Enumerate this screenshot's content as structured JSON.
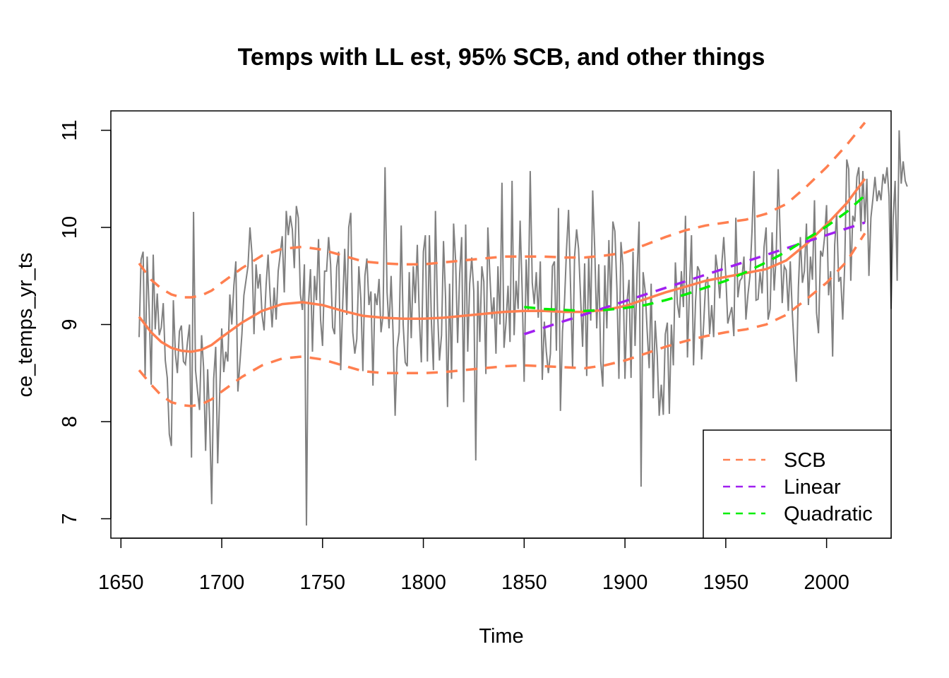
{
  "chart_data": {
    "type": "line",
    "title": "Temps with LL est, 95% SCB, and other things",
    "xlabel": "Time",
    "ylabel": "ce_temps_yr_ts",
    "xlim": [
      1645,
      2032
    ],
    "ylim": [
      6.8,
      11.2
    ],
    "x_ticks": [
      1650,
      1700,
      1750,
      1800,
      1850,
      1900,
      1950,
      2000
    ],
    "y_ticks": [
      7,
      8,
      9,
      10,
      11
    ],
    "grid": false,
    "legend_position": "bottom-right",
    "colors": {
      "raw": "#808080",
      "scb": "#FF7F50",
      "linear": "#A020F0",
      "quadratic": "#00EE00"
    },
    "legend": [
      {
        "label": "SCB",
        "color": "#FF7F50"
      },
      {
        "label": "Linear",
        "color": "#A020F0"
      },
      {
        "label": "Quadratic",
        "color": "#00EE00"
      }
    ],
    "raw_series": {
      "x_start": 1659,
      "x_step": 1,
      "values": [
        8.87,
        9.67,
        9.75,
        8.47,
        9.7,
        9.14,
        8.38,
        9.72,
        8.95,
        9.32,
        8.89,
        8.97,
        9.22,
        8.63,
        8.45,
        7.87,
        7.75,
        9.25,
        8.7,
        8.5,
        8.93,
        8.99,
        8.62,
        8.59,
        8.82,
        9.0,
        7.63,
        10.16,
        8.53,
        8.31,
        8.12,
        8.89,
        8.56,
        7.7,
        8.54,
        8.01,
        7.15,
        8.44,
        8.77,
        7.57,
        8.3,
        8.96,
        8.51,
        8.72,
        8.62,
        9.31,
        9.0,
        9.4,
        9.65,
        8.31,
        8.6,
        8.9,
        9.3,
        9.45,
        9.6,
        10.0,
        9.72,
        8.9,
        9.62,
        9.37,
        9.52,
        9.1,
        8.94,
        9.41,
        9.72,
        9.29,
        8.97,
        9.38,
        9.05,
        9.55,
        9.72,
        9.91,
        9.33,
        10.17,
        9.92,
        10.12,
        9.98,
        9.58,
        10.22,
        10.1,
        9.31,
        9.15,
        9.62,
        6.93,
        9.2,
        9.57,
        8.72,
        9.5,
        9.25,
        9.88,
        9.05,
        8.78,
        9.55,
        9.55,
        9.9,
        9.62,
        8.97,
        8.9,
        9.59,
        9.75,
        8.53,
        9.22,
        9.78,
        9.1,
        10.0,
        10.15,
        8.92,
        8.7,
        8.85,
        9.6,
        9.25,
        8.52,
        9.5,
        9.68,
        9.2,
        9.34,
        8.37,
        9.32,
        9.2,
        9.47,
        8.92,
        9.1,
        10.62,
        9.33,
        8.96,
        9.5,
        8.9,
        8.06,
        8.76,
        8.92,
        10.02,
        9.0,
        8.61,
        8.57,
        9.54,
        8.86,
        9.6,
        9.22,
        9.82,
        9.06,
        8.61,
        9.75,
        9.92,
        8.62,
        9.92,
        9.02,
        8.53,
        10.17,
        9.15,
        8.63,
        8.89,
        9.86,
        9.28,
        8.15,
        9.42,
        8.44,
        10.04,
        9.65,
        8.81,
        9.52,
        9.9,
        8.2,
        10.03,
        8.72,
        9.42,
        9.69,
        9.34,
        7.6,
        9.45,
        8.82,
        9.6,
        9.44,
        8.49,
        10.0,
        9.5,
        9.06,
        9.28,
        8.7,
        9.6,
        9.0,
        10.46,
        8.76,
        9.02,
        9.4,
        8.82,
        10.48,
        8.89,
        9.45,
        9.16,
        10.07,
        9.35,
        8.41,
        9.67,
        9.14,
        10.58,
        9.43,
        9.21,
        9.54,
        9.07,
        9.65,
        8.43,
        9.03,
        8.72,
        8.5,
        8.7,
        9.6,
        9.65,
        8.73,
        10.2,
        8.11,
        8.93,
        9.22,
        9.77,
        10.18,
        9.4,
        8.55,
        9.7,
        9.98,
        9.78,
        9.27,
        8.77,
        9.63,
        8.47,
        9.7,
        9.04,
        10.38,
        9.77,
        8.96,
        9.62,
        8.62,
        8.36,
        9.61,
        8.96,
        9.87,
        9.17,
        10.06,
        9.96,
        9.37,
        8.44,
        9.85,
        9.61,
        8.44,
        9.23,
        9.46,
        8.45,
        9.75,
        8.78,
        9.52,
        10.06,
        7.33,
        9.54,
        9.35,
        8.94,
        8.55,
        9.42,
        8.24,
        9.04,
        8.68,
        8.06,
        8.38,
        8.07,
        8.9,
        9.02,
        8.08,
        9.0,
        8.58,
        9.64,
        9.22,
        9.07,
        9.55,
        9.18,
        10.12,
        8.66,
        9.38,
        9.92,
        8.58,
        9.23,
        9.6,
        9.55,
        8.64,
        9.0,
        9.42,
        9.49,
        8.9,
        9.2,
        8.87,
        9.72,
        9.55,
        9.27,
        9.62,
        9.9,
        9.5,
        9.01,
        9.1,
        9.18,
        8.88,
        10.1,
        9.28,
        9.45,
        9.48,
        9.7,
        9.05,
        9.31,
        9.5,
        9.96,
        10.58,
        9.25,
        9.26,
        9.54,
        9.32,
        9.8,
        10.0,
        9.05,
        9.16,
        9.95,
        9.35,
        9.7,
        10.6,
        9.9,
        9.22,
        9.6,
        9.56,
        9.14,
        9.65,
        9.12,
        8.74,
        8.41,
        9.38,
        9.9,
        9.43,
        9.55,
        10.04,
        9.2,
        9.7,
        9.46,
        10.28,
        9.12,
        8.91,
        9.76,
        9.7,
        9.9,
        10.23,
        9.3,
        9.55,
        8.67,
        9.82,
        10.15,
        9.44,
        9.49,
        9.05,
        9.62,
        10.7,
        10.6,
        9.45,
        10.12,
        10.06,
        10.52,
        10.62,
        9.96,
        10.58,
        10.05,
        10.5,
        9.5,
        10.1,
        10.3,
        10.52,
        10.27,
        10.38,
        10.28,
        10.55,
        10.45,
        10.62,
        10.32,
        9.16,
        10.1,
        10.48,
        9.45,
        11.0,
        10.45,
        10.68,
        10.48,
        10.42
      ]
    },
    "ll_estimate": {
      "x": [
        1659,
        1665,
        1670,
        1675,
        1680,
        1685,
        1690,
        1695,
        1700,
        1710,
        1720,
        1730,
        1740,
        1750,
        1760,
        1770,
        1780,
        1790,
        1800,
        1810,
        1820,
        1830,
        1840,
        1850,
        1860,
        1870,
        1880,
        1890,
        1900,
        1910,
        1920,
        1930,
        1940,
        1950,
        1960,
        1970,
        1980,
        1990,
        2000,
        2010,
        2019
      ],
      "y": [
        9.08,
        8.92,
        8.82,
        8.76,
        8.73,
        8.72,
        8.74,
        8.79,
        8.87,
        9.02,
        9.14,
        9.21,
        9.23,
        9.2,
        9.14,
        9.09,
        9.07,
        9.06,
        9.06,
        9.07,
        9.09,
        9.11,
        9.13,
        9.14,
        9.14,
        9.13,
        9.13,
        9.15,
        9.19,
        9.26,
        9.33,
        9.39,
        9.45,
        9.49,
        9.53,
        9.57,
        9.66,
        9.83,
        10.03,
        10.25,
        10.5
      ]
    },
    "series": [
      {
        "name": "SCB",
        "x": [
          1659,
          1665,
          1670,
          1675,
          1680,
          1685,
          1690,
          1695,
          1700,
          1710,
          1720,
          1730,
          1740,
          1750,
          1760,
          1770,
          1780,
          1790,
          1800,
          1810,
          1820,
          1830,
          1840,
          1850,
          1860,
          1870,
          1880,
          1890,
          1900,
          1910,
          1920,
          1930,
          1940,
          1950,
          1960,
          1970,
          1980,
          1990,
          2000,
          2010,
          2019
        ],
        "upper": [
          9.63,
          9.46,
          9.37,
          9.31,
          9.28,
          9.28,
          9.3,
          9.35,
          9.43,
          9.58,
          9.71,
          9.78,
          9.8,
          9.77,
          9.71,
          9.65,
          9.63,
          9.62,
          9.62,
          9.64,
          9.66,
          9.68,
          9.7,
          9.7,
          9.7,
          9.69,
          9.69,
          9.71,
          9.74,
          9.82,
          9.9,
          9.97,
          10.02,
          10.05,
          10.08,
          10.14,
          10.24,
          10.42,
          10.62,
          10.85,
          11.08
        ],
        "lower": [
          8.53,
          8.38,
          8.27,
          8.2,
          8.17,
          8.16,
          8.18,
          8.23,
          8.31,
          8.46,
          8.58,
          8.65,
          8.67,
          8.64,
          8.58,
          8.52,
          8.5,
          8.5,
          8.5,
          8.51,
          8.53,
          8.55,
          8.57,
          8.58,
          8.57,
          8.56,
          8.55,
          8.58,
          8.63,
          8.7,
          8.77,
          8.83,
          8.88,
          8.92,
          8.95,
          9.0,
          9.1,
          9.26,
          9.43,
          9.65,
          9.94
        ]
      },
      {
        "name": "Linear",
        "x": [
          1850,
          2019
        ],
        "y": [
          8.9,
          10.05
        ]
      },
      {
        "name": "Quadratic",
        "x": [
          1850,
          1860,
          1870,
          1880,
          1890,
          1900,
          1910,
          1920,
          1930,
          1940,
          1950,
          1960,
          1970,
          1980,
          1990,
          2000,
          2010,
          2019
        ],
        "y": [
          9.18,
          9.16,
          9.15,
          9.14,
          9.15,
          9.17,
          9.2,
          9.25,
          9.31,
          9.38,
          9.45,
          9.54,
          9.64,
          9.75,
          9.88,
          10.01,
          10.16,
          10.33
        ]
      }
    ]
  }
}
